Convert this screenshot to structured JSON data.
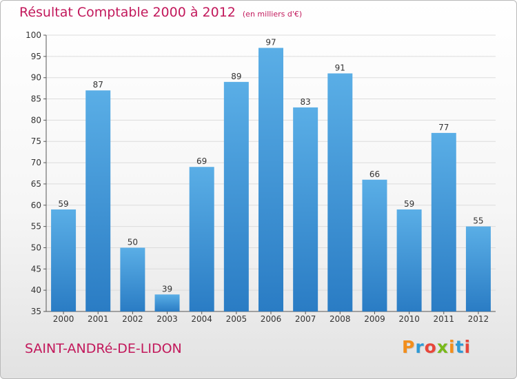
{
  "header": {
    "title": "Résultat Comptable 2000 à 2012",
    "unit": "(en milliers d'€)"
  },
  "footer": {
    "commune": "SAINT-ANDRé-DE-LIDON",
    "logo_text": "Proxiti",
    "logo_colors": [
      "#f28e1c",
      "#2e9ad6",
      "#e8463a",
      "#79b91a",
      "#f28e1c",
      "#2e9ad6",
      "#e8463a"
    ]
  },
  "colors": {
    "bar_light": "#5aaee6",
    "bar_dark": "#2a7cc4",
    "title": "#c2185b",
    "gridline": "#dcdcdc"
  },
  "chart_data": {
    "type": "bar",
    "title": "Résultat Comptable 2000 à 2012",
    "xlabel": "",
    "ylabel": "",
    "categories": [
      "2000",
      "2001",
      "2002",
      "2003",
      "2004",
      "2005",
      "2006",
      "2007",
      "2008",
      "2009",
      "2010",
      "2011",
      "2012"
    ],
    "values": [
      59,
      87,
      50,
      39,
      69,
      89,
      97,
      83,
      91,
      66,
      59,
      77,
      55
    ],
    "ylim": [
      35,
      100
    ],
    "yticks": [
      35,
      40,
      45,
      50,
      55,
      60,
      65,
      70,
      75,
      80,
      85,
      90,
      95,
      100
    ],
    "grid": true
  }
}
